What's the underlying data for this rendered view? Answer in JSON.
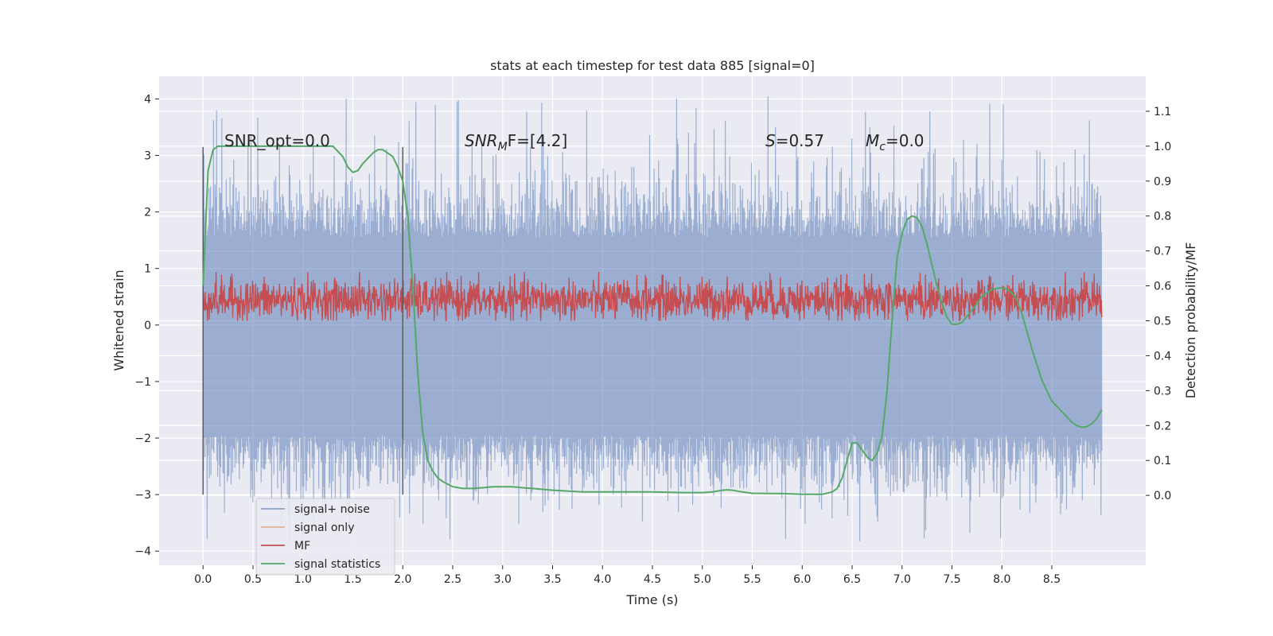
{
  "chart_data": {
    "type": "line",
    "title": "stats at each timestep for test data 885 [signal=0]",
    "xlabel": "Time (s)",
    "ylabel_left": "Whitened strain",
    "ylabel_right": "Detection probability/MF",
    "xlim": [
      -0.44,
      9.44
    ],
    "ylim_left": [
      -4.25,
      4.4
    ],
    "ylim_right": [
      -0.2,
      1.2
    ],
    "x_ticks": [
      0.0,
      0.5,
      1.0,
      1.5,
      2.0,
      2.5,
      3.0,
      3.5,
      4.0,
      4.5,
      5.0,
      5.5,
      6.0,
      6.5,
      7.0,
      7.5,
      8.0,
      8.5
    ],
    "x_tick_labels": [
      "0.0",
      "0.5",
      "1.0",
      "1.5",
      "2.0",
      "2.5",
      "3.0",
      "3.5",
      "4.0",
      "4.5",
      "5.0",
      "5.5",
      "6.0",
      "6.5",
      "7.0",
      "7.5",
      "8.0",
      "8.5"
    ],
    "y_left_ticks": [
      4,
      3,
      2,
      1,
      0,
      -1,
      -2,
      -3,
      -4
    ],
    "y_left_tick_labels": [
      "4",
      "3",
      "2",
      "1",
      "0",
      "−1",
      "−2",
      "−3",
      "−4"
    ],
    "y_right_ticks": [
      1.1,
      1.0,
      0.9,
      0.8,
      0.7,
      0.6,
      0.5,
      0.4,
      0.3,
      0.2,
      0.1,
      0.0
    ],
    "y_right_tick_labels": [
      "1.1",
      "1.0",
      "0.9",
      "0.8",
      "0.7",
      "0.6",
      "0.5",
      "0.4",
      "0.3",
      "0.2",
      "0.1",
      "0.0"
    ],
    "annotations": {
      "snr_opt": "SNR_opt=0.0",
      "snr_mf_base": "SNR",
      "snr_mf_sub": "M",
      "snr_mf_after": "F=[4.2]",
      "s_var": "S",
      "s_val": "=0.57",
      "mc_var": "M",
      "mc_sub": "c",
      "mc_val": "=0.0"
    },
    "vlines_x": [
      0.0,
      2.0
    ],
    "vline_range": [
      -3.0,
      3.15
    ],
    "legend": [
      "signal+ noise",
      "signal only",
      "MF",
      "signal statistics"
    ],
    "legend_location": "lower-left",
    "grid": true,
    "series": [
      {
        "name": "signal+ noise",
        "color": "#4c72b0",
        "x_range": [
          0.0,
          9.0
        ],
        "band_left": [
          -1.95,
          1.55
        ],
        "value_range_left": [
          -3.85,
          4.05
        ]
      },
      {
        "name": "signal only",
        "color": "#dd8452",
        "x_range": [
          0.0,
          9.0
        ],
        "values": []
      },
      {
        "name": "MF",
        "color": "#c44e52",
        "x_range": [
          0.0,
          9.0
        ],
        "band_right": [
          0.5,
          0.62
        ]
      },
      {
        "name": "signal statistics",
        "color": "#55a868",
        "x": [
          0.0,
          0.05,
          0.1,
          0.15,
          0.2,
          0.3,
          0.4,
          0.5,
          0.6,
          0.7,
          0.8,
          0.9,
          1.0,
          1.1,
          1.2,
          1.3,
          1.4,
          1.45,
          1.5,
          1.55,
          1.6,
          1.7,
          1.75,
          1.8,
          1.85,
          1.9,
          1.95,
          2.0,
          2.05,
          2.1,
          2.15,
          2.2,
          2.25,
          2.3,
          2.35,
          2.4,
          2.5,
          2.6,
          2.7,
          2.8,
          2.9,
          3.0,
          3.1,
          3.2,
          3.3,
          3.5,
          3.8,
          4.0,
          4.3,
          4.5,
          4.8,
          5.0,
          5.1,
          5.2,
          5.25,
          5.3,
          5.4,
          5.5,
          5.8,
          6.0,
          6.2,
          6.3,
          6.35,
          6.4,
          6.45,
          6.5,
          6.55,
          6.6,
          6.65,
          6.7,
          6.75,
          6.8,
          6.85,
          6.9,
          6.95,
          7.0,
          7.05,
          7.1,
          7.15,
          7.2,
          7.25,
          7.3,
          7.35,
          7.4,
          7.45,
          7.5,
          7.55,
          7.6,
          7.7,
          7.8,
          7.9,
          8.0,
          8.05,
          8.1,
          8.15,
          8.2,
          8.3,
          8.4,
          8.5,
          8.6,
          8.7,
          8.75,
          8.8,
          8.85,
          8.9,
          8.95,
          9.0
        ],
        "values": [
          0.6,
          0.93,
          0.99,
          1.0,
          1.0,
          1.0,
          1.0,
          1.0,
          1.0,
          1.0,
          1.0,
          1.0,
          1.0,
          1.0,
          1.0,
          1.0,
          0.97,
          0.94,
          0.925,
          0.93,
          0.95,
          0.98,
          0.99,
          0.99,
          0.98,
          0.97,
          0.94,
          0.9,
          0.8,
          0.6,
          0.35,
          0.18,
          0.1,
          0.07,
          0.05,
          0.04,
          0.025,
          0.02,
          0.02,
          0.022,
          0.025,
          0.025,
          0.025,
          0.022,
          0.02,
          0.015,
          0.01,
          0.01,
          0.01,
          0.01,
          0.008,
          0.008,
          0.01,
          0.015,
          0.016,
          0.015,
          0.01,
          0.006,
          0.005,
          0.003,
          0.003,
          0.01,
          0.02,
          0.05,
          0.1,
          0.15,
          0.15,
          0.13,
          0.11,
          0.1,
          0.12,
          0.17,
          0.3,
          0.5,
          0.68,
          0.75,
          0.79,
          0.8,
          0.795,
          0.77,
          0.72,
          0.66,
          0.6,
          0.55,
          0.51,
          0.49,
          0.49,
          0.495,
          0.53,
          0.57,
          0.59,
          0.595,
          0.59,
          0.58,
          0.56,
          0.52,
          0.42,
          0.33,
          0.27,
          0.24,
          0.21,
          0.2,
          0.195,
          0.197,
          0.205,
          0.22,
          0.245
        ]
      }
    ]
  }
}
